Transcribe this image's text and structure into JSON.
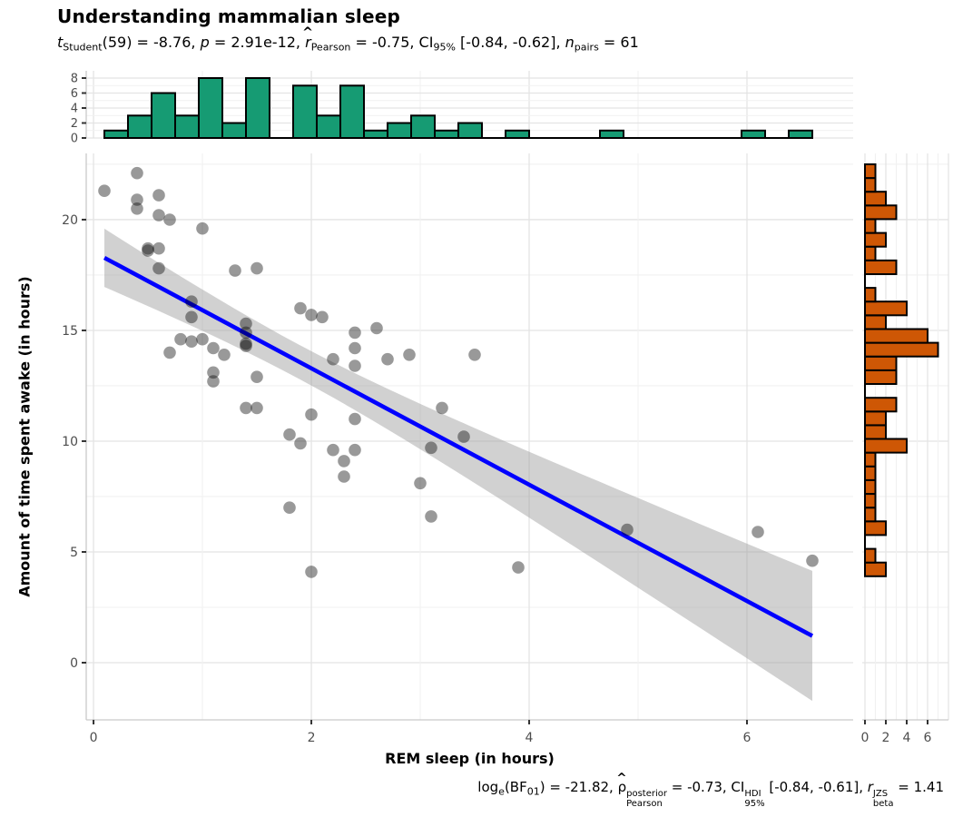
{
  "header": {
    "title": "Understanding mammalian sleep",
    "subtitle_plain": "t_Student(59) = -8.76, p = 2.91e-12, r̂_Pearson = -0.75, CI_95% [-0.84, -0.62], n_pairs = 61",
    "caption_plain": "log_e(BF_01) = -21.82, ρ̂_Pearson^posterior = -0.73, CI_95%^HDI [-0.84, -0.61], r_beta^JZS = 1.41"
  },
  "subtitle_tokens": [
    {
      "t": "t",
      "i": true
    },
    {
      "t": "Student",
      "sub": true
    },
    {
      "t": "(59) = -8.76, "
    },
    {
      "t": "p",
      "i": true
    },
    {
      "t": " = 2.91e-12, "
    },
    {
      "t": "r",
      "i": true,
      "hat": true
    },
    {
      "t": "Pearson",
      "sub": true
    },
    {
      "t": " = -0.75, CI"
    },
    {
      "t": "95%",
      "sub": true
    },
    {
      "t": " [-0.84, -0.62], "
    },
    {
      "t": "n",
      "i": true
    },
    {
      "t": "pairs",
      "sub": true
    },
    {
      "t": " = 61"
    }
  ],
  "caption_tokens": [
    {
      "t": "log"
    },
    {
      "t": "e",
      "sub": true
    },
    {
      "t": "(BF"
    },
    {
      "t": "01",
      "sub": true
    },
    {
      "t": ") = -21.82, "
    },
    {
      "t": "ρ",
      "hat": true
    },
    {
      "up": "posterior",
      "dn": "Pearson"
    },
    {
      "t": " = -0.73, CI"
    },
    {
      "up": "HDI",
      "dn": "95%"
    },
    {
      "t": " [-0.84, -0.61], "
    },
    {
      "t": "r",
      "i": true
    },
    {
      "up": "JZS",
      "dn": "beta"
    },
    {
      "t": " = 1.41"
    }
  ],
  "chart_data": {
    "type": "scatter",
    "title": "Understanding mammalian sleep",
    "xlabel": "REM sleep (in hours)",
    "ylabel": "Amount of time spent awake (in hours)",
    "x_axis": {
      "tick_values": [
        0,
        2,
        4,
        6
      ],
      "tick_labels": [
        "0",
        "2",
        "4",
        "6"
      ],
      "minor": [
        1,
        3,
        5
      ],
      "min": -0.067,
      "max": 6.975
    },
    "y_axis": {
      "tick_values": [
        0,
        5,
        10,
        15,
        20
      ],
      "tick_labels": [
        "0",
        "5",
        "10",
        "15",
        "20"
      ],
      "minor": [
        2.5,
        7.5,
        12.5,
        17.5,
        22.5
      ],
      "min": -2.582,
      "max": 22.99
    },
    "points": [
      [
        0.1,
        21.3
      ],
      [
        0.4,
        22.1
      ],
      [
        0.4,
        20.9
      ],
      [
        0.4,
        20.5
      ],
      [
        0.5,
        18.7
      ],
      [
        0.5,
        18.6
      ],
      [
        0.6,
        21.1
      ],
      [
        0.6,
        20.2
      ],
      [
        0.6,
        18.7
      ],
      [
        0.6,
        17.8
      ],
      [
        0.7,
        20.0
      ],
      [
        0.7,
        14.0
      ],
      [
        0.8,
        14.6
      ],
      [
        0.9,
        16.3
      ],
      [
        0.9,
        15.6
      ],
      [
        0.9,
        14.5
      ],
      [
        1.0,
        19.6
      ],
      [
        1.0,
        14.6
      ],
      [
        1.1,
        14.2
      ],
      [
        1.1,
        13.1
      ],
      [
        1.1,
        12.7
      ],
      [
        1.2,
        13.9
      ],
      [
        1.3,
        17.7
      ],
      [
        1.4,
        15.3
      ],
      [
        1.4,
        14.9
      ],
      [
        1.4,
        14.4
      ],
      [
        1.4,
        14.3
      ],
      [
        1.4,
        11.5
      ],
      [
        1.5,
        17.8
      ],
      [
        1.5,
        12.9
      ],
      [
        1.5,
        11.5
      ],
      [
        1.8,
        10.3
      ],
      [
        1.8,
        7.0
      ],
      [
        1.9,
        16.0
      ],
      [
        1.9,
        9.9
      ],
      [
        2.0,
        15.7
      ],
      [
        2.0,
        11.2
      ],
      [
        2.0,
        4.1
      ],
      [
        2.1,
        15.6
      ],
      [
        2.2,
        13.7
      ],
      [
        2.2,
        9.6
      ],
      [
        2.3,
        9.1
      ],
      [
        2.3,
        8.4
      ],
      [
        2.4,
        14.9
      ],
      [
        2.4,
        14.2
      ],
      [
        2.4,
        13.4
      ],
      [
        2.4,
        11.0
      ],
      [
        2.4,
        9.6
      ],
      [
        2.6,
        15.1
      ],
      [
        2.7,
        13.7
      ],
      [
        2.9,
        13.9
      ],
      [
        3.0,
        8.1
      ],
      [
        3.1,
        9.7
      ],
      [
        3.1,
        6.6
      ],
      [
        3.2,
        11.5
      ],
      [
        3.4,
        10.2
      ],
      [
        3.5,
        13.9
      ],
      [
        3.9,
        4.3
      ],
      [
        4.9,
        6.0
      ],
      [
        6.1,
        5.9
      ],
      [
        6.6,
        4.6
      ]
    ],
    "n_pairs": 61,
    "regression": {
      "line_color": "#0000FF",
      "x_range": [
        0.1,
        6.6
      ],
      "ci_t": 2.0,
      "band_color": "#999999",
      "band_opacity": 0.45
    },
    "marginal_top": {
      "fill": "#169B73",
      "bin_start": 0.1,
      "bin_width": 0.21667,
      "counts": [
        1,
        3,
        6,
        3,
        8,
        2,
        8,
        0,
        7,
        3,
        7,
        1,
        2,
        3,
        1,
        2,
        0,
        1,
        0,
        0,
        0,
        1,
        0,
        0,
        0,
        0,
        0,
        1,
        0,
        1
      ],
      "axis_tick_values": [
        0,
        2,
        4,
        6,
        8
      ],
      "axis_tick_labels": [
        "0",
        "2",
        "4",
        "6",
        "8"
      ],
      "axis_minor": [
        1,
        3,
        5,
        7
      ],
      "axis_max": 8.97
    },
    "marginal_right": {
      "fill": "#CE5705",
      "bin_start": 3.9,
      "bin_width": 0.62,
      "counts": [
        2,
        1,
        0,
        2,
        1,
        1,
        1,
        1,
        1,
        4,
        2,
        2,
        3,
        0,
        3,
        3,
        7,
        6,
        2,
        4,
        1,
        0,
        3,
        1,
        2,
        1,
        3,
        2,
        1,
        1
      ],
      "axis_tick_values": [
        0,
        2,
        4,
        6
      ],
      "axis_tick_labels": [
        "0",
        "2",
        "4",
        "6"
      ],
      "axis_minor": [
        1,
        3,
        5,
        7
      ],
      "axis_grid_max": 8
    }
  },
  "colors": {
    "background": "#FFFFFF",
    "text": "#000000",
    "tick_text": "#4D4D4D",
    "tick_mark": "#333333",
    "axis_line": "#C9C9C9",
    "grid_major": "#E4E4E4",
    "grid_minor": "#F1F1F1",
    "point": "#000000",
    "point_opacity": 0.4,
    "bar_stroke": "#000000"
  }
}
